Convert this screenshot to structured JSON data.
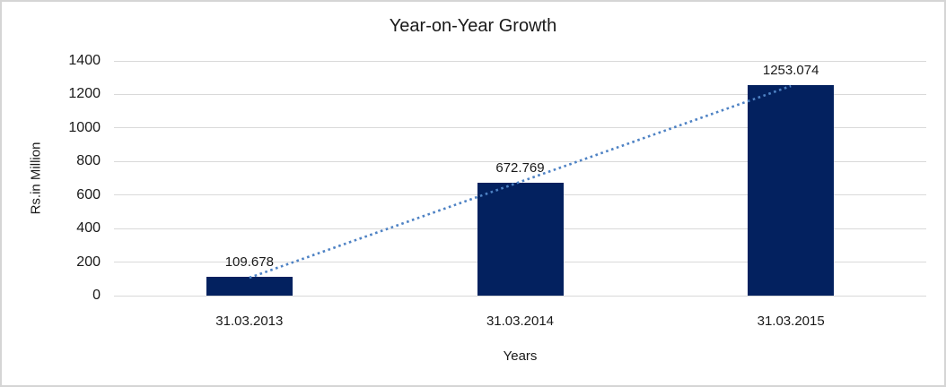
{
  "chart_data": {
    "type": "bar",
    "title": "Year-on-Year Growth",
    "categories": [
      "31.03.2013",
      "31.03.2014",
      "31.03.2015"
    ],
    "values": [
      109.678,
      672.769,
      1253.074
    ],
    "data_labels": [
      "109.678",
      "672.769",
      "1253.074"
    ],
    "xlabel": "Years",
    "ylabel": "Rs.in Million",
    "ylim": [
      0,
      1400
    ],
    "yticks": [
      0,
      200,
      400,
      600,
      800,
      1000,
      1200,
      1400
    ],
    "grid": true,
    "legend": "none",
    "bar_color": "#03215F",
    "gridline_color": "#D9D9D9",
    "frame_border_color": "#D5D5D5",
    "trendline": {
      "type": "linear",
      "style": "dotted",
      "color": "#4E82C4"
    }
  }
}
